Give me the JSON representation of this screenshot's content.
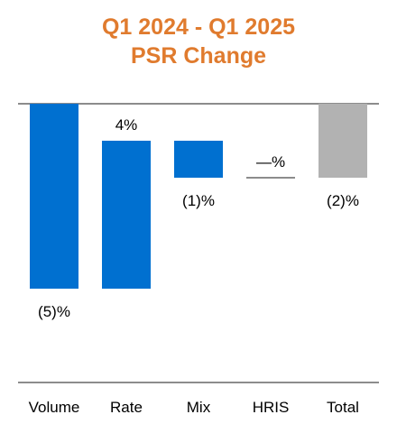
{
  "chart_data": {
    "type": "bar",
    "chart_style": "waterfall",
    "title_lines": [
      "Q1 2024 - Q1 2025",
      "PSR Change"
    ],
    "categories": [
      "Volume",
      "Rate",
      "Mix",
      "HRIS",
      "Total"
    ],
    "values": [
      -5,
      4,
      -1,
      0,
      -2
    ],
    "data_labels": [
      "(5)%",
      "4%",
      "(1)%",
      "—%",
      "(2)%"
    ],
    "bar_kinds": [
      "step",
      "step",
      "step",
      "step",
      "total"
    ],
    "colors": {
      "title": "#E07B2E",
      "step": "#0070D0",
      "total": "#B2B2B2",
      "axis": "#8C8C8C",
      "text": "#000000"
    },
    "grid": false,
    "legend": "none"
  }
}
